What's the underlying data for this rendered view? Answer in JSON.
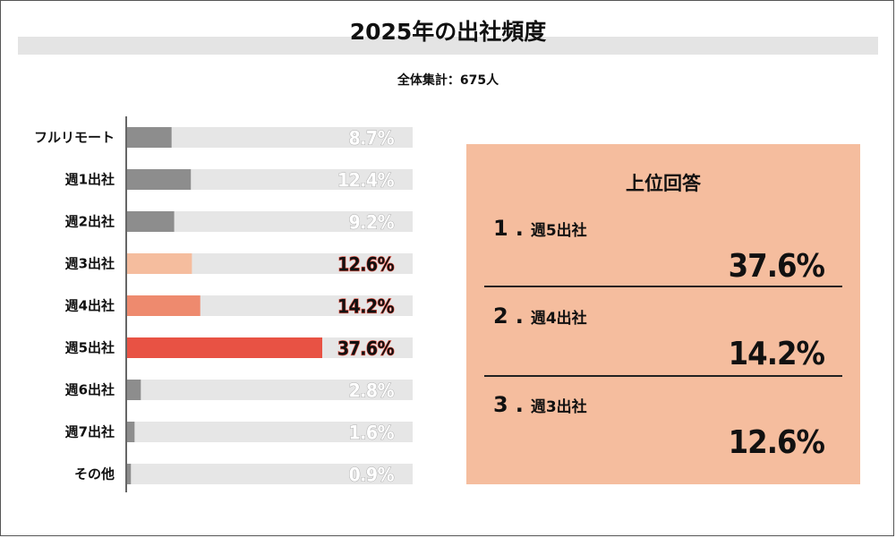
{
  "title": "2025年の出社頻度",
  "subtitle": "全体集計：675人",
  "chart_data": {
    "type": "bar",
    "orientation": "horizontal",
    "categories": [
      "フルリモート",
      "週1出社",
      "週2出社",
      "週3出社",
      "週4出社",
      "週5出社",
      "週6出社",
      "週7出社",
      "その他"
    ],
    "values": [
      8.7,
      12.4,
      9.2,
      12.6,
      14.2,
      37.6,
      2.8,
      1.6,
      0.9
    ],
    "value_labels": [
      "8.7%",
      "12.4%",
      "9.2%",
      "12.6%",
      "14.2%",
      "37.6%",
      "2.8%",
      "1.6%",
      "0.9%"
    ],
    "xlim": [
      0,
      55
    ],
    "grid": false,
    "colors": {
      "default": "#8d8d8d",
      "track": "#e6e6e6",
      "highlight": [
        "#f5bd9e",
        "#ee8a6e",
        "#e85244"
      ],
      "highlight_index": [
        3,
        4,
        5
      ]
    }
  },
  "ranking": {
    "title": "上位回答",
    "items": [
      {
        "rank": "1",
        "label": "週5出社",
        "value": "37.6%"
      },
      {
        "rank": "2",
        "label": "週4出社",
        "value": "14.2%"
      },
      {
        "rank": "3",
        "label": "週3出社",
        "value": "12.6%"
      }
    ],
    "background": "#f5bd9e"
  }
}
